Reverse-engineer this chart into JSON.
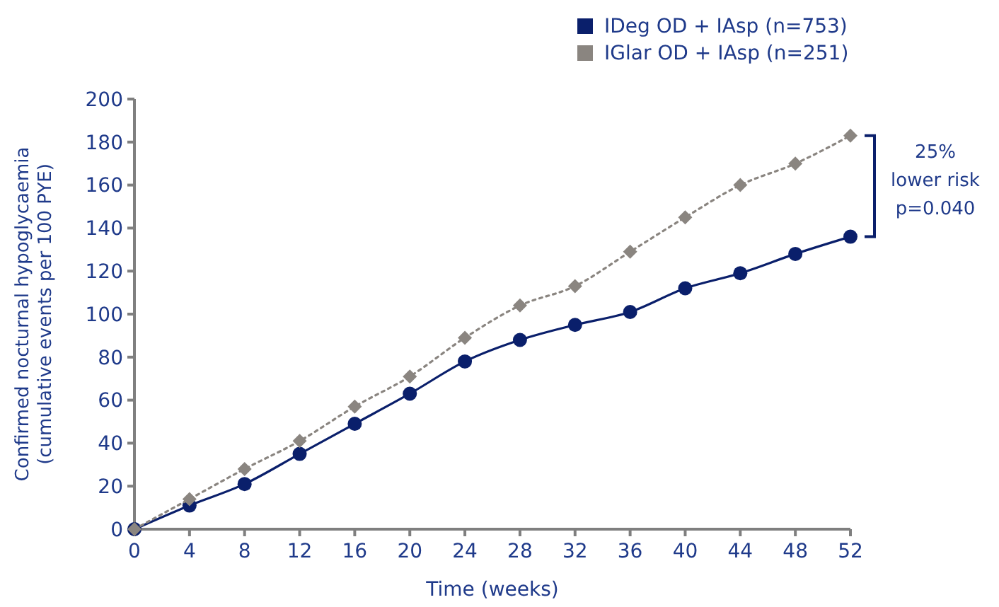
{
  "chart_data": {
    "type": "line",
    "xlabel": "Time (weeks)",
    "ylabel": "Confirmed  nocturnal hypoglycaemia\n(cumulative events per 100 PYE)",
    "x": [
      0,
      4,
      8,
      12,
      16,
      20,
      24,
      28,
      32,
      36,
      40,
      44,
      48,
      52
    ],
    "series": [
      {
        "name": "IDeg OD + IAsp (n=753)",
        "color": "#0a1f6b",
        "marker": "circle",
        "line_style": "solid",
        "values": [
          0,
          11,
          21,
          35,
          49,
          63,
          78,
          88,
          95,
          101,
          112,
          119,
          128,
          136
        ]
      },
      {
        "name": "IGlar OD + IAsp (n=251)",
        "color": "#8a8580",
        "marker": "diamond",
        "line_style": "dotted",
        "values": [
          0,
          14,
          28,
          41,
          57,
          71,
          89,
          104,
          113,
          129,
          145,
          160,
          170,
          183
        ]
      }
    ],
    "xlim": [
      0,
      52
    ],
    "xticks": [
      0,
      4,
      8,
      12,
      16,
      20,
      24,
      28,
      32,
      36,
      40,
      44,
      48,
      52
    ],
    "ylim": [
      0,
      200
    ],
    "yticks": [
      0,
      20,
      40,
      60,
      80,
      100,
      120,
      140,
      160,
      180,
      200
    ],
    "grid": false,
    "legend": "top right",
    "annotations": [
      "25%\nlower risk\np=0.040"
    ]
  }
}
